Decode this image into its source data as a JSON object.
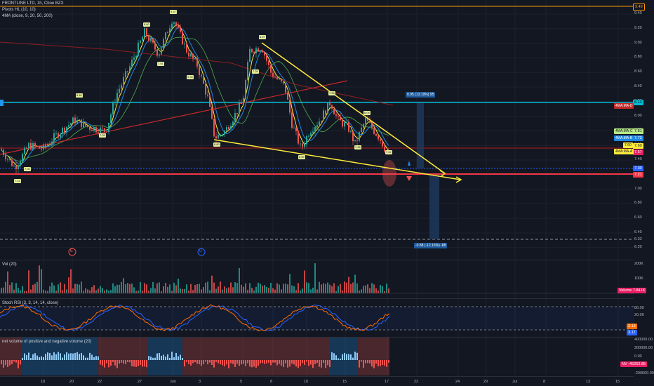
{
  "chart_header": {
    "title": "FRONTLINE LTD, 1h, Cboe BZX",
    "pivots": "Pivots HL (10, 10)",
    "ma": "4MA (close, 9, 20, 50, 200)"
  },
  "price_axis": {
    "ticks": [
      "9.40",
      "9.20",
      "9.00",
      "8.80",
      "8.60",
      "8.40",
      "8.20",
      "8.00",
      "7.80",
      "7.60",
      "7.40",
      "7.20",
      "7.00",
      "6.80",
      "6.60",
      "6.40",
      "6.20"
    ],
    "top_tag": "9.49",
    "tags": [
      {
        "text": "8.13",
        "color": "#00bcd4",
        "fg": "#131722"
      },
      {
        "text": "7.81",
        "color": "#b8e986",
        "fg": "#131722"
      },
      {
        "text": "7.73",
        "color": "#1e88e5",
        "fg": "#ffffff"
      },
      {
        "text": "7.60",
        "color": "#ffeb3b",
        "fg": "#131722"
      },
      {
        "text": "7.57",
        "color": "#e91e63",
        "fg": "#ffffff"
      },
      {
        "text": "7.30",
        "color": "#2962ff",
        "fg": "#ffffff"
      },
      {
        "text": "7.21",
        "color": "#f23645",
        "fg": "#ffffff"
      },
      {
        "text": "6.33",
        "color": "#131722",
        "fg": "#b2b5be"
      }
    ],
    "ma_labels": [
      {
        "text": "4MA:MA-D",
        "color": "#c62828"
      },
      {
        "text": "4MA:MA-C",
        "color": "#b8e986"
      },
      {
        "text": "4MA:MA-B",
        "color": "#1e88e5"
      },
      {
        "text": "4MA:MA-A",
        "color": "#ffeb3b"
      },
      {
        "text": "7.60",
        "color": "#ffeb3b"
      }
    ]
  },
  "time_axis": [
    "18",
    "20",
    "22",
    "27",
    "Jun",
    "3",
    "5",
    "8",
    "10",
    "15",
    "17",
    "22",
    "24",
    "29",
    "Jul",
    "8",
    "13",
    "15"
  ],
  "annotations": {
    "target_up": "0.95 (13.19%) 95",
    "target_down": "-0.88 (-12.16%) -88",
    "event_e": "E",
    "event_d": "D",
    "pivot_values": [
      "9.37",
      "8.97",
      "8.60",
      "8.40",
      "8.04",
      "7.55",
      "7.14",
      "7.02",
      "6.80",
      "6.59",
      "7.01",
      "7.03",
      "7.26",
      "7.29",
      "9.39",
      "7.02"
    ]
  },
  "volume_pane": {
    "title": "Vol (20)",
    "ticks": [
      "200K",
      "100K"
    ],
    "tag": "Volume 7.841K"
  },
  "stoch_pane": {
    "title": "Stoch RSI (3, 3, 14, 14, close)",
    "ticks": [
      "80.00",
      "20.00"
    ],
    "tags": [
      "2.13",
      "3.17"
    ]
  },
  "nv_pane": {
    "title": "net volume of positive and negative volume (20)",
    "ticks": [
      "400000.00",
      "200000.00",
      "0.00",
      "-200000.00"
    ],
    "tag": "NV -45263.85"
  },
  "colors": {
    "background": "#131722",
    "up": "#26a69a",
    "down": "#ef5350",
    "trendline": "#ffeb3b",
    "horizontal_cyan": "#00bcd4",
    "horizontal_red": "#f23645"
  }
}
